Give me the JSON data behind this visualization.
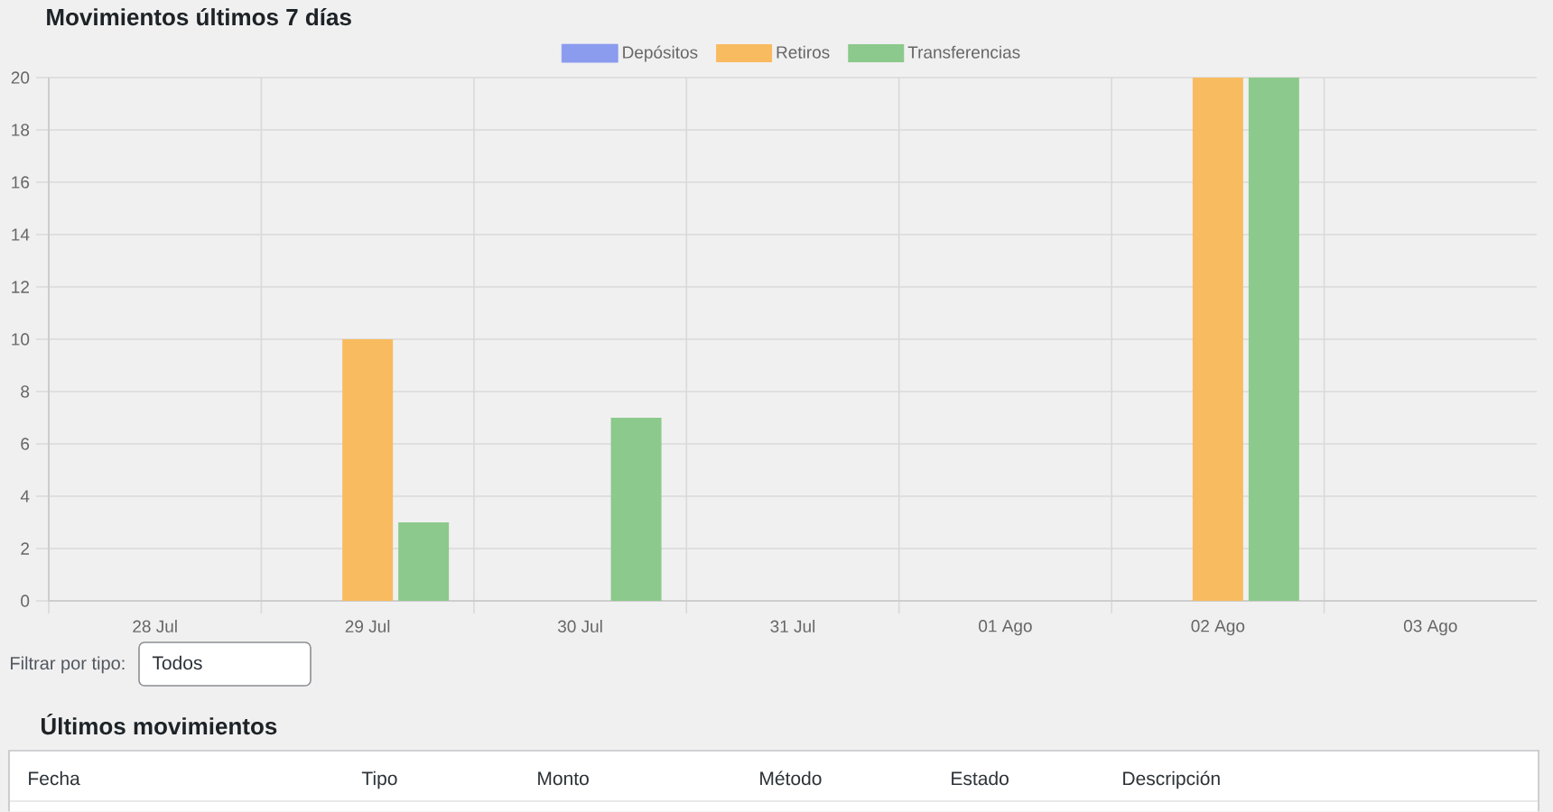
{
  "chart_data": {
    "type": "bar",
    "title": "Movimientos últimos 7 días",
    "categories": [
      "28 Jul",
      "29 Jul",
      "30 Jul",
      "31 Jul",
      "01 Ago",
      "02 Ago",
      "03 Ago"
    ],
    "series": [
      {
        "name": "Depósitos",
        "color": "#8b9cef",
        "values": [
          null,
          null,
          null,
          null,
          null,
          null,
          null
        ]
      },
      {
        "name": "Retiros",
        "color": "#f8bb5f",
        "values": [
          null,
          10,
          null,
          null,
          null,
          20,
          null
        ]
      },
      {
        "name": "Transferencias",
        "color": "#8cc98c",
        "values": [
          null,
          3,
          7,
          null,
          null,
          20,
          null
        ]
      }
    ],
    "ylim": [
      0,
      20
    ],
    "yticks": [
      0,
      2,
      4,
      6,
      8,
      10,
      12,
      14,
      16,
      18,
      20
    ],
    "grid": true,
    "legend": "top",
    "annotations": [
      "Filtrar por tipo:",
      "Todos",
      "Últimos movimientos",
      "Fecha",
      "Tipo",
      "Monto",
      "Método",
      "Estado",
      "Descripción"
    ]
  }
}
